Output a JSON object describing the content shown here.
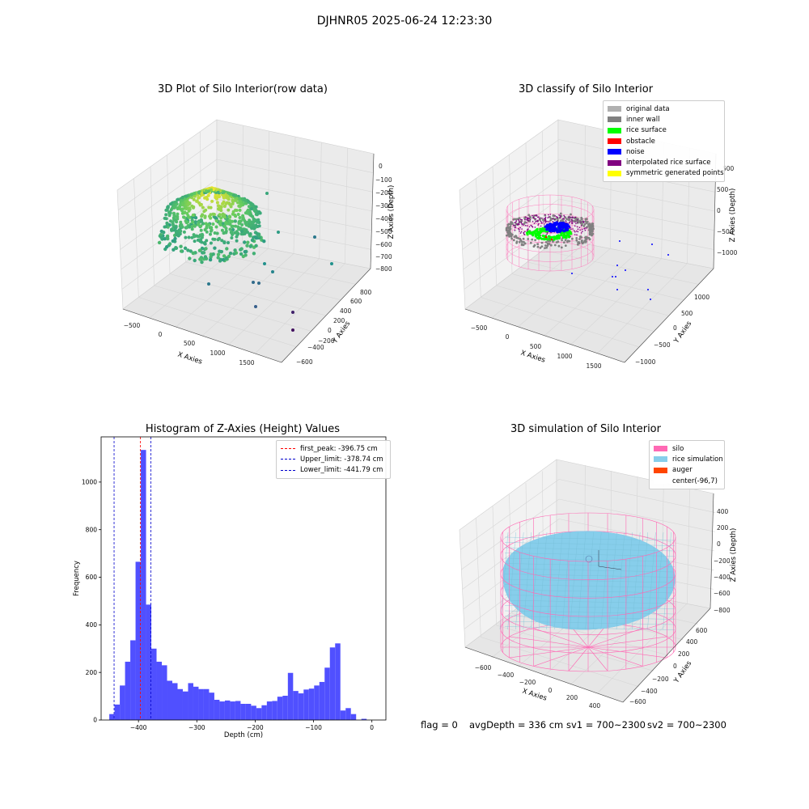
{
  "figure": {
    "suptitle": "DJHNR05 2025-06-24 12:23:30",
    "footer": {
      "flag": "flag = 0",
      "avg_depth": "avgDepth = 336 cm",
      "sv1": "sv1 = 700~2300",
      "sv2": "sv2 = 700~2300"
    }
  },
  "colors": {
    "hist_bar": "#5050ff",
    "peak_line": "#ff0000",
    "limit_line": "#0000cc",
    "pane": "#f2f2f2",
    "grid": "#d8d8d8"
  },
  "chart_data": [
    {
      "type": "scatter3d",
      "title": "3D Plot of Silo Interior(row data)",
      "xlabel": "X Axies",
      "ylabel": "Y Axies",
      "zlabel": "Z Axies (Depth)",
      "x_ticks": [
        "−500",
        "0",
        "500",
        "1000",
        "1500"
      ],
      "y_ticks": [
        "−600",
        "−400",
        "−200",
        "0",
        "200",
        "400",
        "600",
        "800"
      ],
      "z_ticks": [
        "0",
        "−100",
        "−200",
        "−300",
        "−400",
        "−500",
        "−600",
        "−700",
        "−800"
      ],
      "colormap": "viridis",
      "description_points": "dense dome of points colored by depth, plus scattered outliers"
    },
    {
      "type": "scatter3d",
      "title": "3D classify of Silo Interior",
      "xlabel": "X Axies",
      "ylabel": "Y Axies",
      "zlabel": "Z Axies (Depth)",
      "x_ticks": [
        "−500",
        "0",
        "500",
        "1000",
        "1500"
      ],
      "y_ticks": [
        "−1000",
        "−500",
        "0",
        "500",
        "1000"
      ],
      "z_ticks": [
        "500",
        "0",
        "−500",
        "−1000"
      ],
      "z_top_tick": "500",
      "legend": [
        {
          "label": "original data",
          "color": "#b0b0b0"
        },
        {
          "label": "inner wall",
          "color": "#808080"
        },
        {
          "label": "rice surface",
          "color": "#00ff00"
        },
        {
          "label": "obstacle",
          "color": "#ff0000"
        },
        {
          "label": "noise",
          "color": "#0000ff"
        },
        {
          "label": "interpolated rice surface",
          "color": "#800080"
        },
        {
          "label": "symmetric generated points",
          "color": "#ffff00"
        }
      ]
    },
    {
      "type": "bar",
      "title": "Histogram of Z-Axies (Height) Values",
      "xlabel": "Depth (cm)",
      "ylabel": "Frequency",
      "xlim": [
        -464,
        24
      ],
      "ylim": [
        0,
        1190
      ],
      "x_ticks": [
        -400,
        -300,
        -200,
        -100,
        0
      ],
      "x_tick_labels": [
        "−400",
        "−300",
        "−200",
        "−100",
        "0"
      ],
      "y_ticks": [
        0,
        200,
        400,
        600,
        800,
        1000
      ],
      "y_tick_labels": [
        "0",
        "200",
        "400",
        "600",
        "800",
        "1000"
      ],
      "bin_start": -450,
      "bin_width": 9,
      "values": [
        25,
        65,
        145,
        245,
        335,
        665,
        1135,
        485,
        300,
        245,
        230,
        165,
        155,
        130,
        120,
        155,
        140,
        130,
        130,
        115,
        85,
        78,
        82,
        78,
        80,
        68,
        68,
        60,
        50,
        62,
        78,
        80,
        98,
        102,
        198,
        122,
        112,
        128,
        132,
        145,
        160,
        220,
        305,
        322,
        40,
        50,
        25,
        0,
        5
      ],
      "lines": [
        {
          "label": "first_peak: -396.75 cm",
          "x": -396.75,
          "color": "#ff0000"
        },
        {
          "label": "Upper_limit: -378.74 cm",
          "x": -378.74,
          "color": "#0000cc"
        },
        {
          "label": "Lower_limit: -441.79 cm",
          "x": -441.79,
          "color": "#0000cc"
        }
      ]
    },
    {
      "type": "surface3d",
      "title": "3D simulation of Silo Interior",
      "xlabel": "X Axies",
      "ylabel": "Y Axies",
      "zlabel": "Z Axies (Depth)",
      "x_ticks": [
        "−600",
        "−400",
        "−200",
        "0",
        "200",
        "400"
      ],
      "y_ticks": [
        "−600",
        "−400",
        "−200",
        "0",
        "200",
        "400",
        "600"
      ],
      "z_ticks": [
        "400",
        "200",
        "0",
        "−200",
        "−400",
        "−600",
        "−800"
      ],
      "legend": [
        {
          "label": "silo",
          "color": "#ff69b4"
        },
        {
          "label": "rice simulation",
          "color": "#87ceeb"
        },
        {
          "label": "auger",
          "color": "#ff4500"
        },
        {
          "label": "center(-96,7)",
          "color": "#ffffff"
        }
      ]
    }
  ]
}
